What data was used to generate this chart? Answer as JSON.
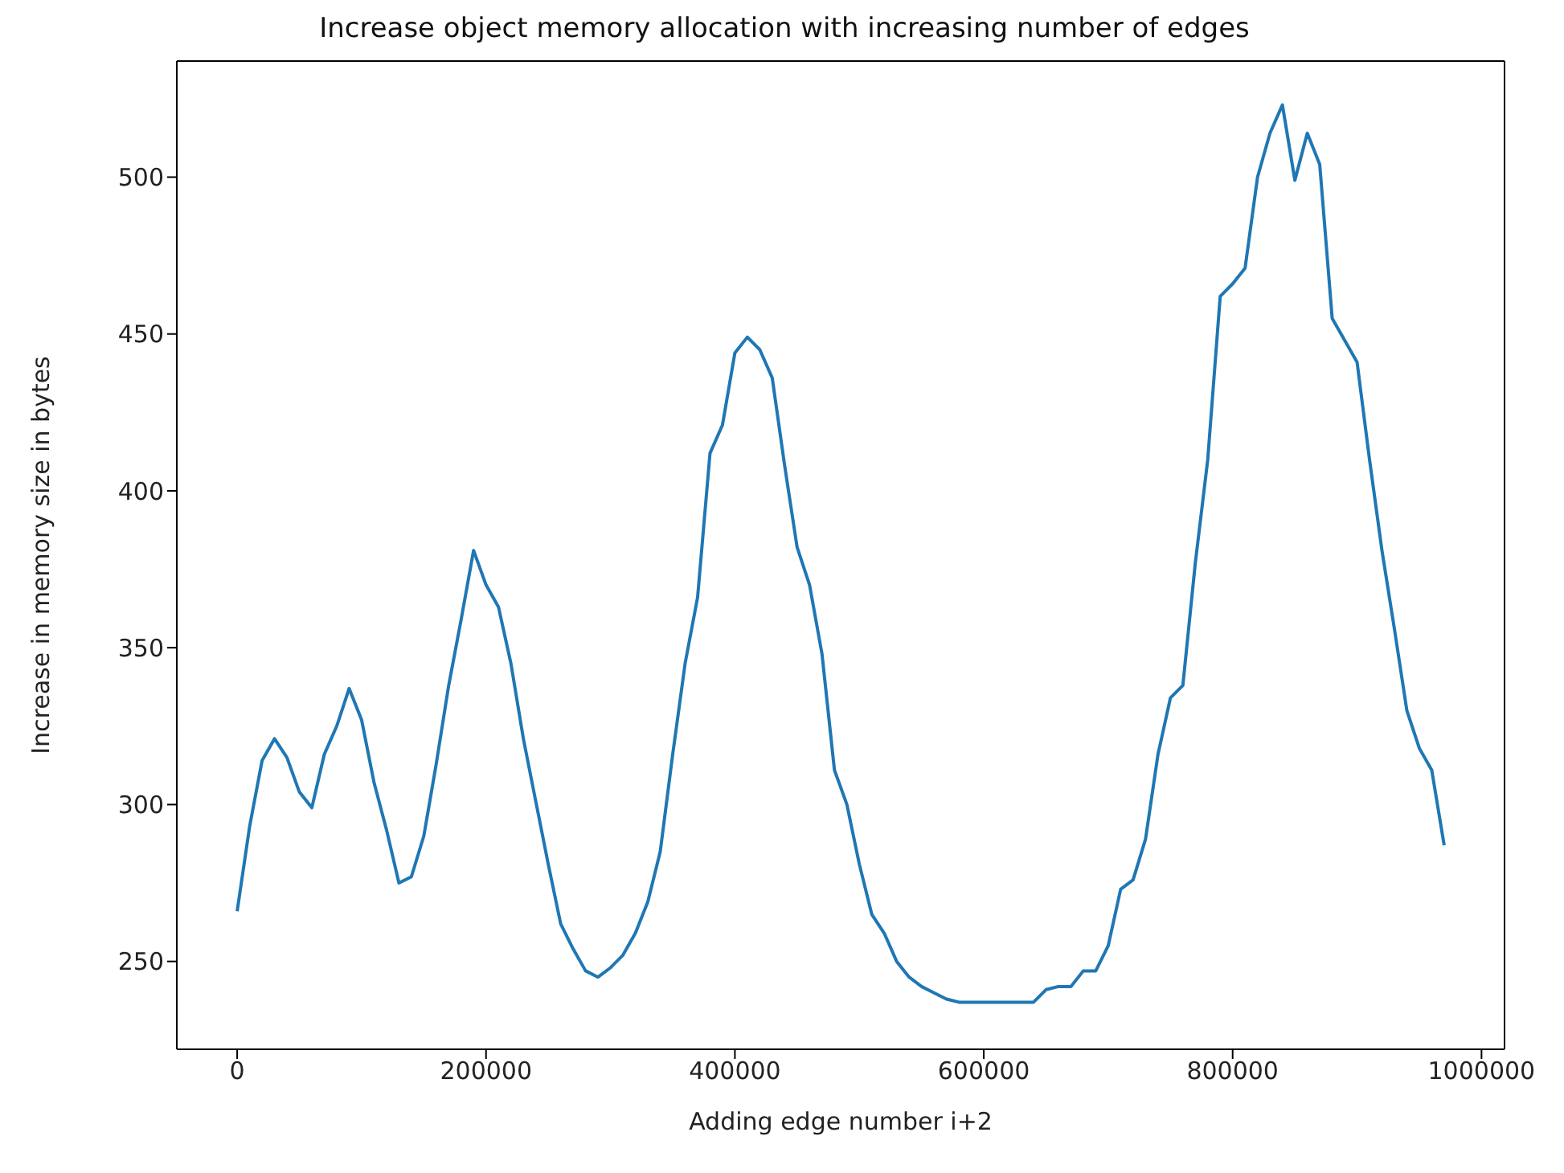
{
  "chart_data": {
    "type": "line",
    "title": "Increase object memory allocation with increasing number of edges",
    "xlabel": "Adding edge number i+2",
    "ylabel": "Increase in memory size in bytes",
    "x": [
      0,
      10000,
      20000,
      30000,
      40000,
      50000,
      60000,
      70000,
      80000,
      90000,
      100000,
      110000,
      120000,
      130000,
      140000,
      150000,
      160000,
      170000,
      180000,
      190000,
      200000,
      210000,
      220000,
      230000,
      240000,
      250000,
      260000,
      270000,
      280000,
      290000,
      300000,
      310000,
      320000,
      330000,
      340000,
      350000,
      360000,
      370000,
      380000,
      390000,
      400000,
      410000,
      420000,
      430000,
      440000,
      450000,
      460000,
      470000,
      480000,
      490000,
      500000,
      510000,
      520000,
      530000,
      540000,
      550000,
      560000,
      570000,
      580000,
      590000,
      600000,
      610000,
      620000,
      630000,
      640000,
      650000,
      660000,
      670000,
      680000,
      690000,
      700000,
      710000,
      720000,
      730000,
      740000,
      750000,
      760000,
      770000,
      780000,
      790000,
      800000,
      810000,
      820000,
      830000,
      840000,
      850000,
      860000,
      870000,
      880000,
      890000,
      900000,
      910000,
      920000,
      930000,
      940000,
      950000,
      960000,
      970000
    ],
    "series": [
      {
        "color": "#1f77b4",
        "values": [
          266,
          293,
          314,
          321,
          315,
          304,
          299,
          316,
          325,
          337,
          327,
          307,
          292,
          275,
          277,
          290,
          313,
          338,
          359,
          381,
          370,
          363,
          345,
          321,
          301,
          281,
          262,
          254,
          247,
          245,
          248,
          252,
          259,
          269,
          285,
          316,
          345,
          366,
          412,
          421,
          444,
          449,
          445,
          436,
          408,
          382,
          370,
          348,
          311,
          300,
          281,
          265,
          259,
          250,
          245,
          242,
          240,
          238,
          237,
          237,
          237,
          237,
          237,
          237,
          237,
          241,
          242,
          242,
          247,
          247,
          255,
          273,
          276,
          289,
          316,
          334,
          338,
          377,
          410,
          462,
          466,
          471,
          500,
          514,
          523,
          499,
          514,
          504,
          455,
          448,
          441,
          410,
          381,
          356,
          330,
          318,
          311,
          287
        ]
      }
    ],
    "xlim": [
      -48500,
      1018500
    ],
    "xticks": [
      0,
      200000,
      400000,
      600000,
      800000,
      1000000
    ],
    "ylim": [
      222,
      537
    ],
    "yticks": [
      250,
      300,
      350,
      400,
      450,
      500
    ],
    "grid": false,
    "legend": false,
    "line_style": "solid",
    "marker": "none"
  }
}
